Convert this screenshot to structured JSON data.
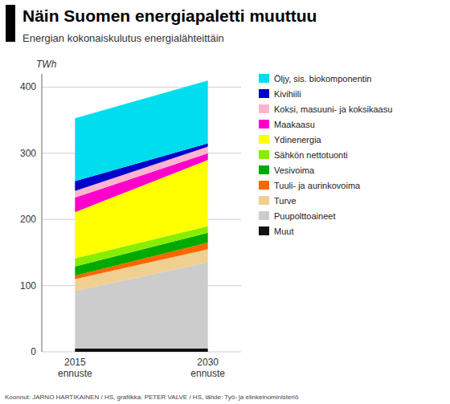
{
  "chart_data": {
    "type": "area",
    "stacked": true,
    "title": "Näin Suomen energiapaletti muuttuu",
    "subtitle": "Energian kokonaiskulutus energialähteittäin",
    "ylabel": "TWh",
    "footnote": "Koonnut: JARNO HARTIKAINEN / HS, grafiikka: PETER VALVE / HS, lähde: Työ- ja elinkeinoministeriö",
    "categories": [
      "2015\nennuste",
      "2030\nennuste"
    ],
    "ylim": [
      0,
      420
    ],
    "yticks": [
      0,
      100,
      200,
      300,
      400
    ],
    "grid": true,
    "legend": "right",
    "series": [
      {
        "name": "Muut",
        "color": "#111111",
        "values": [
          5,
          5
        ]
      },
      {
        "name": "Puupolttoaineet",
        "color": "#cccccc",
        "values": [
          87,
          130
        ]
      },
      {
        "name": "Turve",
        "color": "#f0d090",
        "values": [
          18,
          20
        ]
      },
      {
        "name": "Tuuli- ja aurinkovoima",
        "color": "#ff6600",
        "values": [
          5,
          10
        ]
      },
      {
        "name": "Vesivoima",
        "color": "#00aa00",
        "values": [
          14,
          15
        ]
      },
      {
        "name": "Sähkön nettotuonti",
        "color": "#88ee00",
        "values": [
          12,
          10
        ]
      },
      {
        "name": "Ydinenergia",
        "color": "#ffff00",
        "values": [
          70,
          100
        ]
      },
      {
        "name": "Maakaasu",
        "color": "#ff00cc",
        "values": [
          22,
          10
        ]
      },
      {
        "name": "Koksi, masuuni- ja koksikaasu",
        "color": "#ffb3cc",
        "values": [
          10,
          10
        ]
      },
      {
        "name": "Kivihiili",
        "color": "#0000cc",
        "values": [
          15,
          5
        ]
      },
      {
        "name": "Öljy, sis. biokomponentin",
        "color": "#00ddee",
        "values": [
          95,
          95
        ]
      }
    ]
  }
}
